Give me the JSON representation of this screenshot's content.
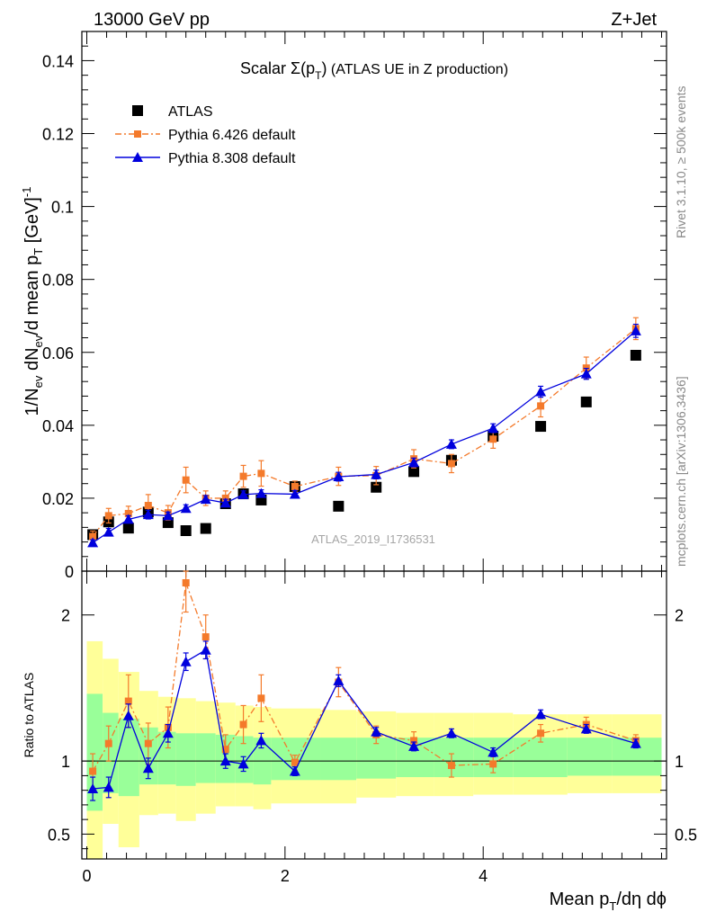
{
  "header": {
    "left_label": "13000 GeV pp",
    "right_label": "Z+Jet"
  },
  "side_labels": {
    "rivet": "Rivet 3.1.10, ≥ 500k events",
    "mcplots": "mcplots.cern.ch [arXiv:1306.3436]"
  },
  "chart_data": {
    "type": "scatter",
    "title_prefix": "Scalar ",
    "title_symbol": "Σ(p",
    "title_sub": "T",
    "title_close": ")",
    "title_suffix": " (ATLAS UE in Z production)",
    "watermark": "ATLAS_2019_I1736531",
    "ylabel": "1/Nev dNev/d mean pT [GeV]-1",
    "ylabel_parts": {
      "a": "1/N",
      "b": "ev",
      "c": " dN",
      "d": "ev",
      "e": "/d mean p",
      "f": "T",
      "g": " [GeV]",
      "h": "-1"
    },
    "xlabel_parts": {
      "a": "Mean p",
      "b": "T",
      "c": "/dη dϕ"
    },
    "xlim": [
      -0.05,
      5.85
    ],
    "ylim": [
      0,
      0.148
    ],
    "ratio_ylim": [
      0.33,
      2.3
    ],
    "ratio_ylabel": "Ratio to ATLAS",
    "x_ticks": [
      0,
      2,
      4
    ],
    "x_tick_labels": [
      "0",
      "2",
      "4"
    ],
    "y_ticks": [
      0,
      0.02,
      0.04,
      0.06,
      0.08,
      0.1,
      0.12,
      0.14
    ],
    "y_tick_labels": [
      "0",
      "0.02",
      "0.04",
      "0.06",
      "0.08",
      "0.1",
      "0.12",
      "0.14"
    ],
    "ratio_ticks": [
      0.5,
      1,
      2
    ],
    "ratio_tick_labels": [
      "0.5",
      "1",
      "2"
    ],
    "legend": {
      "position": "top-left",
      "entries": [
        "ATLAS",
        "Pythia 6.426 default",
        "Pythia 8.308 default"
      ]
    },
    "bin_edges": [
      0,
      0.16,
      0.32,
      0.53,
      0.72,
      0.9,
      1.1,
      1.3,
      1.5,
      1.68,
      1.86,
      2.36,
      2.72,
      3.12,
      3.5,
      3.9,
      4.3,
      4.85,
      5.3,
      5.8
    ],
    "x": [
      0.06,
      0.22,
      0.42,
      0.62,
      0.82,
      1.0,
      1.2,
      1.4,
      1.58,
      1.76,
      2.1,
      2.54,
      2.92,
      3.3,
      3.68,
      4.1,
      4.58,
      5.04,
      5.54
    ],
    "series": [
      {
        "name": "ATLAS",
        "color": "#000000",
        "marker": "square",
        "values": [
          0.01,
          0.0135,
          0.0118,
          0.0162,
          0.0133,
          0.0111,
          0.0117,
          0.0185,
          0.0212,
          0.0195,
          0.0232,
          0.0178,
          0.023,
          0.0273,
          0.0304,
          0.037,
          0.0397,
          0.0464,
          0.0592
        ]
      },
      {
        "name": "Pythia 6.426 default",
        "color": "#f47a2b",
        "marker": "square-small",
        "values": [
          0.0095,
          0.0152,
          0.0158,
          0.018,
          0.016,
          0.025,
          0.02,
          0.02,
          0.026,
          0.0268,
          0.0232,
          0.026,
          0.0262,
          0.0308,
          0.0295,
          0.0362,
          0.0453,
          0.0557,
          0.0665
        ],
        "errors": [
          0.0015,
          0.002,
          0.002,
          0.003,
          0.002,
          0.0035,
          0.002,
          0.002,
          0.003,
          0.0035,
          0.0015,
          0.0025,
          0.0025,
          0.0025,
          0.0025,
          0.0025,
          0.003,
          0.003,
          0.003
        ],
        "ratio": [
          0.93,
          1.12,
          1.41,
          1.12,
          1.23,
          2.22,
          1.85,
          1.08,
          1.25,
          1.43,
          0.99,
          1.54,
          1.18,
          1.14,
          0.97,
          0.98,
          1.19,
          1.25,
          1.14
        ],
        "ratio_errors": [
          0.12,
          0.12,
          0.18,
          0.14,
          0.14,
          0.2,
          0.15,
          0.1,
          0.13,
          0.16,
          0.05,
          0.1,
          0.06,
          0.06,
          0.08,
          0.06,
          0.06,
          0.05,
          0.04
        ]
      },
      {
        "name": "Pythia 8.308 default",
        "color": "#0000dd",
        "marker": "triangle",
        "values": [
          0.0078,
          0.0107,
          0.0142,
          0.0155,
          0.0152,
          0.0172,
          0.0197,
          0.0187,
          0.021,
          0.0213,
          0.0211,
          0.0259,
          0.0265,
          0.0298,
          0.0348,
          0.0392,
          0.0492,
          0.0541,
          0.0659
        ],
        "errors": [
          0.0008,
          0.001,
          0.001,
          0.0012,
          0.001,
          0.001,
          0.001,
          0.001,
          0.001,
          0.001,
          0.001,
          0.0012,
          0.0012,
          0.0012,
          0.0012,
          0.0012,
          0.0015,
          0.0015,
          0.0018
        ],
        "ratio": [
          0.81,
          0.82,
          1.31,
          0.95,
          1.19,
          1.68,
          1.76,
          1.0,
          0.98,
          1.14,
          0.93,
          1.55,
          1.2,
          1.1,
          1.19,
          1.06,
          1.32,
          1.22,
          1.12
        ],
        "ratio_errors": [
          0.08,
          0.07,
          0.08,
          0.07,
          0.06,
          0.06,
          0.06,
          0.05,
          0.05,
          0.05,
          0.03,
          0.04,
          0.03,
          0.03,
          0.03,
          0.03,
          0.03,
          0.03,
          0.03
        ]
      }
    ],
    "bands": {
      "yellow_color": "#ffff99",
      "green_color": "#99ff99",
      "yellow_lo": [
        0.33,
        0.57,
        0.41,
        0.63,
        0.64,
        0.59,
        0.64,
        0.69,
        0.69,
        0.67,
        0.71,
        0.71,
        0.75,
        0.76,
        0.76,
        0.77,
        0.77,
        0.78,
        0.78
      ],
      "yellow_hi": [
        1.82,
        1.7,
        1.61,
        1.48,
        1.44,
        1.43,
        1.41,
        1.4,
        1.38,
        1.37,
        1.36,
        1.35,
        1.34,
        1.33,
        1.33,
        1.33,
        1.32,
        1.32,
        1.32
      ],
      "green_lo": [
        0.66,
        0.78,
        0.76,
        0.84,
        0.84,
        0.83,
        0.85,
        0.85,
        0.85,
        0.84,
        0.87,
        0.87,
        0.88,
        0.89,
        0.89,
        0.89,
        0.89,
        0.9,
        0.9
      ],
      "green_hi": [
        1.46,
        1.33,
        1.29,
        1.23,
        1.2,
        1.19,
        1.19,
        1.18,
        1.17,
        1.16,
        1.16,
        1.16,
        1.16,
        1.16,
        1.16,
        1.16,
        1.16,
        1.16,
        1.16
      ]
    }
  }
}
